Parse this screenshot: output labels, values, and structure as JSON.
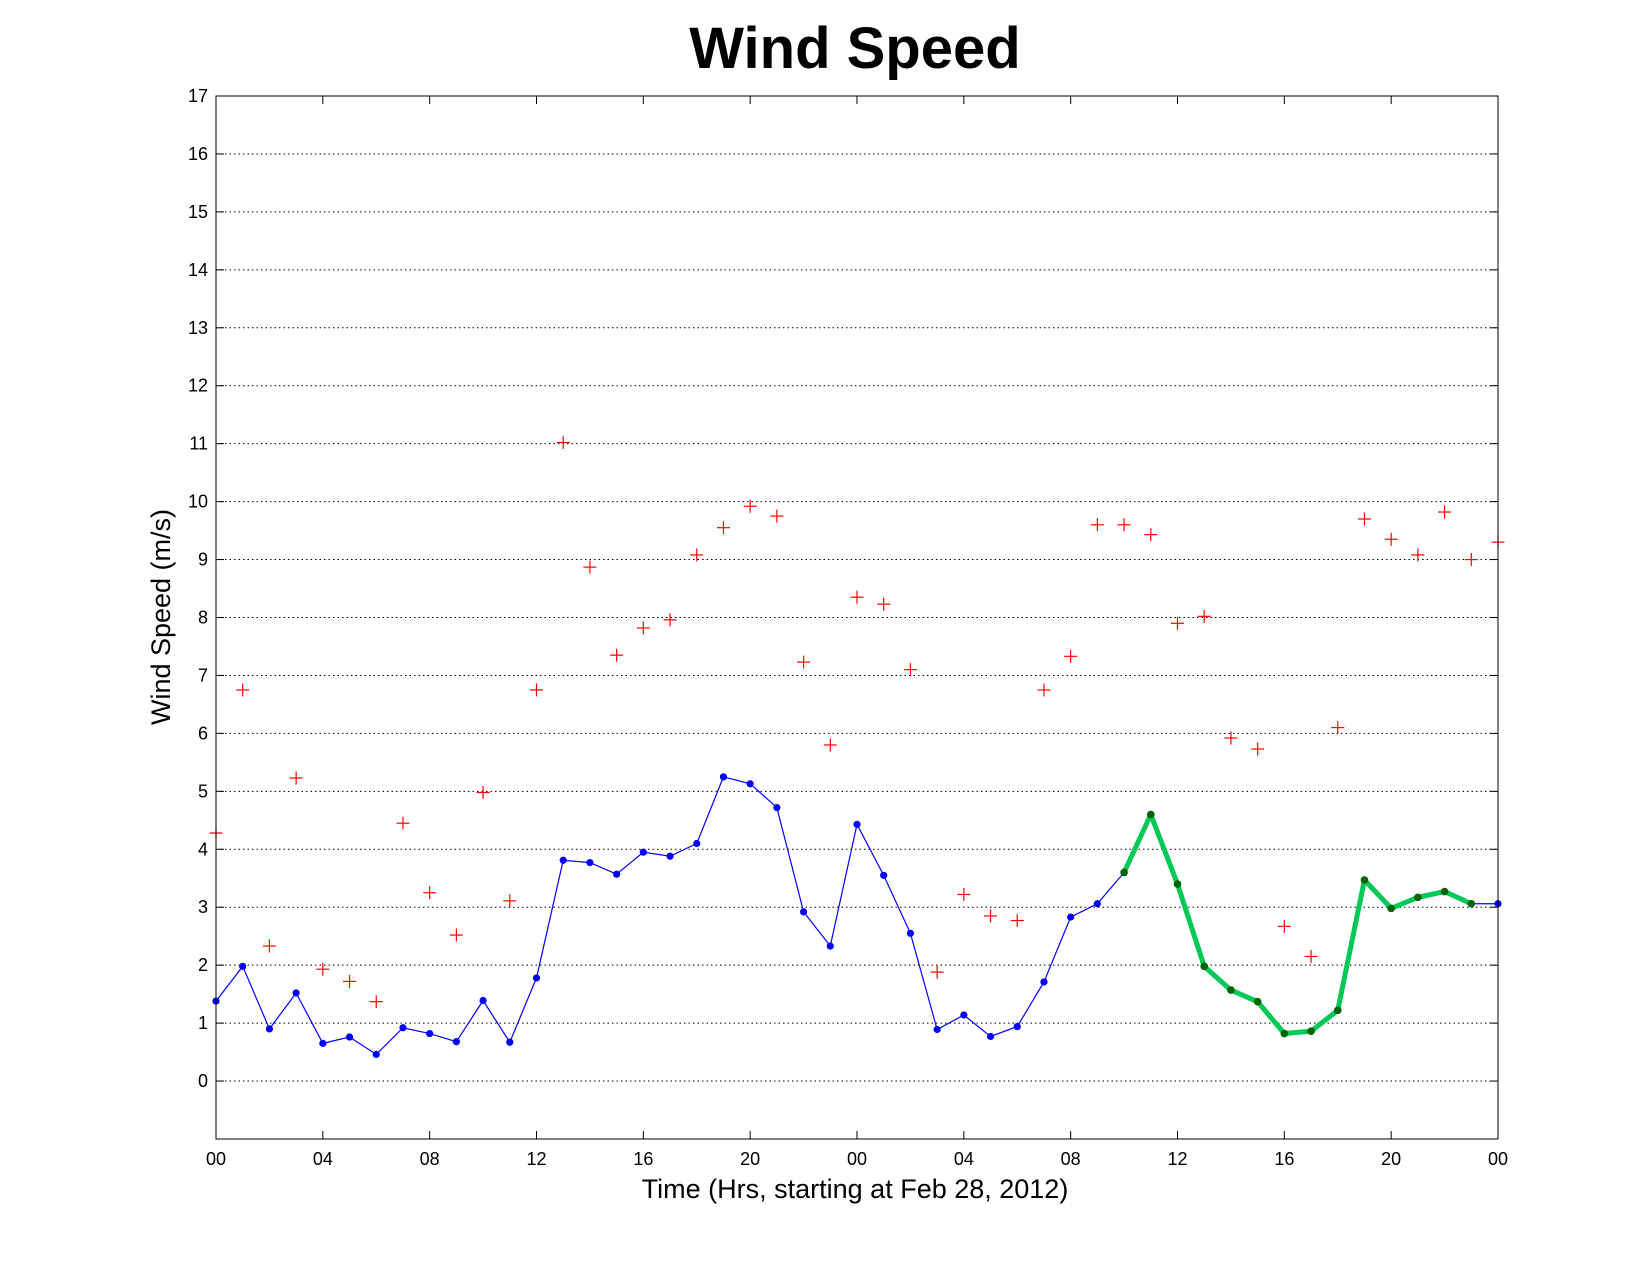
{
  "chart_data": {
    "type": "line",
    "title": "Wind Speed",
    "xlabel": "Time (Hrs, starting at Feb 28, 2012)",
    "ylabel": "Wind Speed (m/s)",
    "xlim": [
      0,
      48
    ],
    "ylim": [
      -1,
      17
    ],
    "yticks": [
      0,
      1,
      2,
      3,
      4,
      5,
      6,
      7,
      8,
      9,
      10,
      11,
      12,
      13,
      14,
      15,
      16,
      17
    ],
    "xticks": [
      {
        "x": 0,
        "label": "00"
      },
      {
        "x": 4,
        "label": "04"
      },
      {
        "x": 8,
        "label": "08"
      },
      {
        "x": 12,
        "label": "12"
      },
      {
        "x": 16,
        "label": "16"
      },
      {
        "x": 20,
        "label": "20"
      },
      {
        "x": 24,
        "label": "00"
      },
      {
        "x": 28,
        "label": "04"
      },
      {
        "x": 32,
        "label": "08"
      },
      {
        "x": 36,
        "label": "12"
      },
      {
        "x": 40,
        "label": "16"
      },
      {
        "x": 44,
        "label": "20"
      },
      {
        "x": 48,
        "label": "00"
      }
    ],
    "grid": "horizontal dotted",
    "series": [
      {
        "style": "thin line with dot markers",
        "color": "#0000ff",
        "x": [
          0,
          1,
          2,
          3,
          4,
          5,
          6,
          7,
          8,
          9,
          10,
          11,
          12,
          13,
          14,
          15,
          16,
          17,
          18,
          19,
          20,
          21,
          22,
          23,
          24,
          25,
          26,
          27,
          28,
          29,
          30,
          31,
          32,
          33,
          34,
          35,
          36,
          37,
          38,
          39,
          40,
          41,
          42,
          43,
          44,
          45,
          46,
          47,
          48
        ],
        "y": [
          1.38,
          1.98,
          0.9,
          1.52,
          0.65,
          0.76,
          0.46,
          0.92,
          0.82,
          0.68,
          1.39,
          0.67,
          1.78,
          3.81,
          3.77,
          3.57,
          3.95,
          3.88,
          4.1,
          5.25,
          5.13,
          4.72,
          2.92,
          2.33,
          4.43,
          3.55,
          2.55,
          0.89,
          1.14,
          0.77,
          0.94,
          1.71,
          2.83,
          3.06,
          3.6,
          4.6,
          3.4,
          1.98,
          1.57,
          1.37,
          0.82,
          0.86,
          1.22,
          3.47,
          2.98,
          3.17,
          3.27,
          3.06,
          3.06
        ]
      },
      {
        "style": "thick line with dark dot markers",
        "color": "#00c957",
        "marker_color": "#006400",
        "x": [
          34,
          35,
          36,
          37,
          38,
          39,
          40,
          41,
          42,
          43,
          44,
          45,
          46,
          47
        ],
        "y": [
          3.6,
          4.6,
          3.4,
          1.98,
          1.57,
          1.37,
          0.82,
          0.86,
          1.22,
          3.47,
          2.98,
          3.17,
          3.27,
          3.06
        ]
      },
      {
        "style": "plus markers",
        "color": "#ff0000",
        "x": [
          0,
          1,
          2,
          3,
          4,
          5,
          6,
          7,
          8,
          9,
          10,
          11,
          12,
          13,
          14,
          15,
          16,
          17,
          18,
          19,
          20,
          21,
          22,
          23,
          24,
          25,
          26,
          27,
          28,
          29,
          30,
          31,
          32,
          33,
          34,
          35,
          36,
          37,
          38,
          39,
          40,
          41,
          42,
          43,
          44,
          45,
          46,
          47,
          48
        ],
        "y": [
          4.28,
          6.75,
          2.33,
          5.23,
          1.93,
          1.72,
          1.37,
          4.45,
          3.25,
          2.52,
          4.98,
          3.11,
          6.75,
          11.02,
          8.87,
          7.35,
          7.82,
          7.96,
          9.08,
          9.55,
          9.92,
          9.75,
          7.23,
          5.8,
          8.35,
          8.23,
          7.1,
          1.88,
          3.22,
          2.85,
          2.77,
          6.75,
          7.33,
          9.6,
          9.6,
          9.43,
          7.9,
          8.02,
          5.92,
          5.73,
          2.67,
          2.15,
          6.1,
          9.7,
          9.35,
          9.08,
          9.82,
          9.0,
          9.3
        ]
      }
    ]
  }
}
